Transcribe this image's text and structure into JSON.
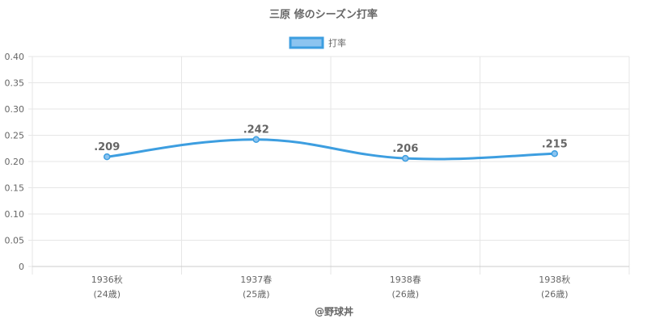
{
  "chart_data": {
    "type": "line",
    "title": "三原 修のシーズン打率",
    "categories": [
      "1936秋",
      "1937春",
      "1938春",
      "1938秋"
    ],
    "category_sublabels": [
      "(24歳)",
      "(25歳)",
      "(26歳)",
      "(26歳)"
    ],
    "series": [
      {
        "name": "打率",
        "values": [
          0.209,
          0.242,
          0.206,
          0.215
        ],
        "data_labels": [
          ".209",
          ".242",
          ".206",
          ".215"
        ],
        "color": "#3d9ee0",
        "fill": "#8cc4f0"
      }
    ],
    "ylim": [
      0,
      0.4
    ],
    "yticks": [
      "0",
      "0.05",
      "0.10",
      "0.15",
      "0.20",
      "0.25",
      "0.30",
      "0.35",
      "0.40"
    ],
    "legend_position": "top-center",
    "grid": true,
    "credit": "@野球丼"
  }
}
